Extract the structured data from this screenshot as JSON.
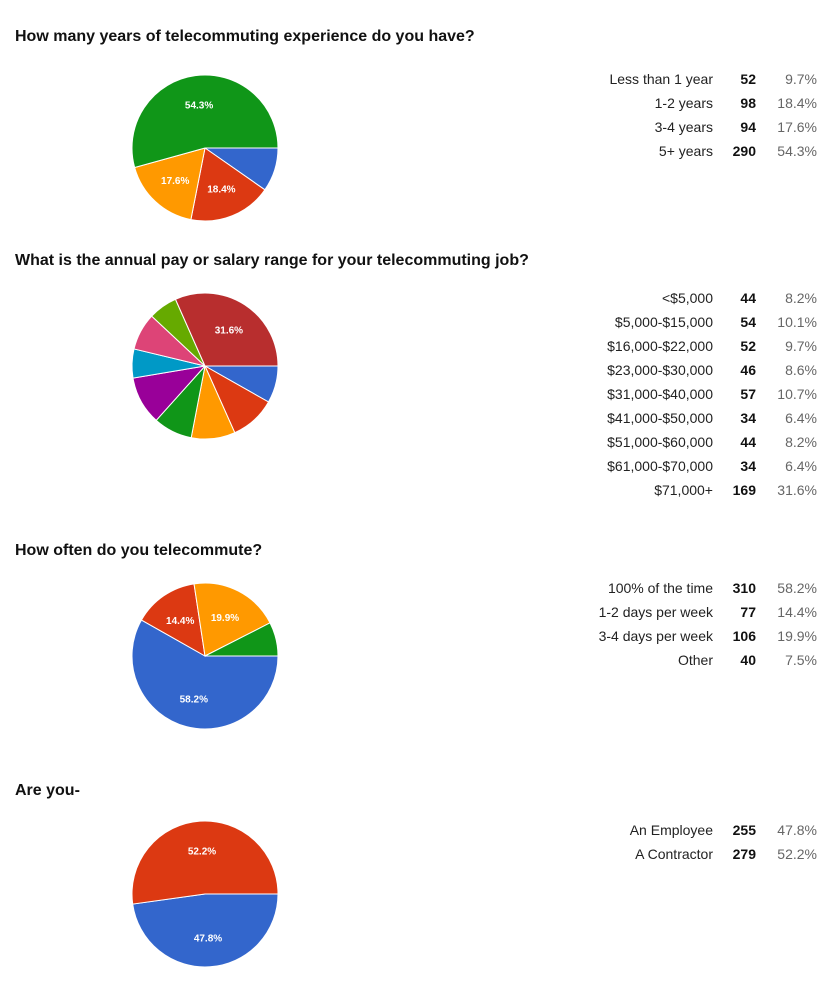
{
  "chart_data": [
    {
      "type": "pie",
      "title": "How many years of telecommuting experience do you have?",
      "slices": [
        {
          "label": "Less than 1 year",
          "count": 52,
          "percent": "9.7%",
          "value": 9.7,
          "color": "#3366cc"
        },
        {
          "label": "1-2 years",
          "count": 98,
          "percent": "18.4%",
          "value": 18.4,
          "color": "#dc3912",
          "slice_label": "18.4%"
        },
        {
          "label": "3-4 years",
          "count": 94,
          "percent": "17.6%",
          "value": 17.6,
          "color": "#ff9900",
          "slice_label": "17.6%"
        },
        {
          "label": "5+ years",
          "count": 290,
          "percent": "54.3%",
          "value": 54.3,
          "color": "#109618",
          "slice_label": "54.3%"
        }
      ]
    },
    {
      "type": "pie",
      "title": "What is the annual pay or salary range for your telecommuting job?",
      "slices": [
        {
          "label": "<$5,000",
          "count": 44,
          "percent": "8.2%",
          "value": 8.2,
          "color": "#3366cc"
        },
        {
          "label": "$5,000-$15,000",
          "count": 54,
          "percent": "10.1%",
          "value": 10.1,
          "color": "#dc3912"
        },
        {
          "label": "$16,000-$22,000",
          "count": 52,
          "percent": "9.7%",
          "value": 9.7,
          "color": "#ff9900"
        },
        {
          "label": "$23,000-$30,000",
          "count": 46,
          "percent": "8.6%",
          "value": 8.6,
          "color": "#109618"
        },
        {
          "label": "$31,000-$40,000",
          "count": 57,
          "percent": "10.7%",
          "value": 10.7,
          "color": "#990099"
        },
        {
          "label": "$41,000-$50,000",
          "count": 34,
          "percent": "6.4%",
          "value": 6.4,
          "color": "#0099c6"
        },
        {
          "label": "$51,000-$60,000",
          "count": 44,
          "percent": "8.2%",
          "value": 8.2,
          "color": "#dd4477"
        },
        {
          "label": "$61,000-$70,000",
          "count": 34,
          "percent": "6.4%",
          "value": 6.4,
          "color": "#66aa00"
        },
        {
          "label": "$71,000+",
          "count": 169,
          "percent": "31.6%",
          "value": 31.6,
          "color": "#b82e2e",
          "slice_label": "31.6%"
        }
      ]
    },
    {
      "type": "pie",
      "title": "How often do you telecommute?",
      "slices": [
        {
          "label": "100% of the time",
          "count": 310,
          "percent": "58.2%",
          "value": 58.2,
          "color": "#3366cc",
          "slice_label": "58.2%"
        },
        {
          "label": "1-2 days per week",
          "count": 77,
          "percent": "14.4%",
          "value": 14.4,
          "color": "#dc3912",
          "slice_label": "14.4%"
        },
        {
          "label": "3-4 days per week",
          "count": 106,
          "percent": "19.9%",
          "value": 19.9,
          "color": "#ff9900",
          "slice_label": "19.9%"
        },
        {
          "label": "Other",
          "count": 40,
          "percent": "7.5%",
          "value": 7.5,
          "color": "#109618"
        }
      ]
    },
    {
      "type": "pie",
      "title": "Are you-",
      "slices": [
        {
          "label": "An Employee",
          "count": 255,
          "percent": "47.8%",
          "value": 47.8,
          "color": "#3366cc",
          "slice_label": "47.8%"
        },
        {
          "label": "A Contractor",
          "count": 279,
          "percent": "52.2%",
          "value": 52.2,
          "color": "#dc3912",
          "slice_label": "52.2%"
        }
      ]
    }
  ]
}
